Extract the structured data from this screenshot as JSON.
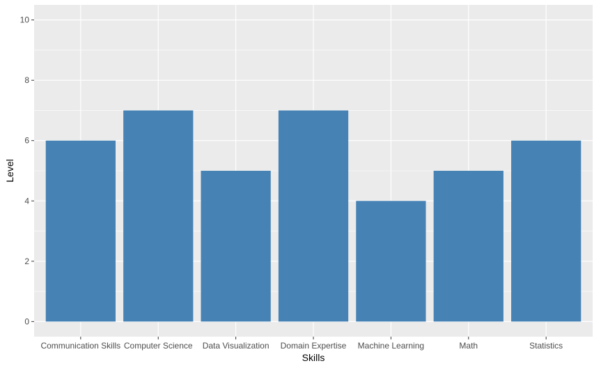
{
  "chart_data": {
    "type": "bar",
    "categories": [
      "Communication Skills",
      "Computer Science",
      "Data Visualization",
      "Domain Expertise",
      "Machine Learning",
      "Math",
      "Statistics"
    ],
    "values": [
      6,
      7,
      5,
      7,
      4,
      5,
      6
    ],
    "xlabel": "Skills",
    "ylabel": "Level",
    "ylim": [
      -0.5,
      10.5
    ],
    "yticks": [
      0,
      2,
      4,
      6,
      8,
      10
    ],
    "grid": true,
    "legend": "none"
  },
  "colors": {
    "bar": "#4682B4",
    "panel_background": "#EBEBEB",
    "grid_major": "#FFFFFF",
    "tick_label": "#4D4D4D"
  }
}
